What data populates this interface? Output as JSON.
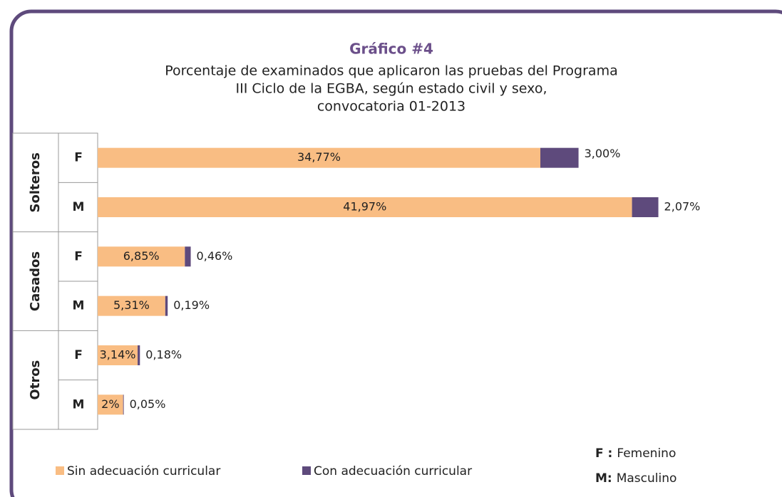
{
  "chart_data": {
    "type": "stacked-barh",
    "title": "Gráfico #4",
    "subtitle": [
      "Porcentaje de examinados que aplicaron las pruebas del Programa",
      "III Ciclo de la EGBA, según estado civil y sexo,",
      "convocatoria 01-2013"
    ],
    "groups": [
      {
        "name": "Solteros",
        "categories": [
          "F",
          "M"
        ]
      },
      {
        "name": "Casados",
        "categories": [
          "F",
          "M"
        ]
      },
      {
        "name": "Otros",
        "categories": [
          "F",
          "M"
        ]
      }
    ],
    "series": [
      {
        "name": "Sin adecuación curricular",
        "color": "#f9bd83",
        "values": [
          34.77,
          41.97,
          6.85,
          5.31,
          3.14,
          2
        ],
        "value_labels": [
          "34,77%",
          "41,97%",
          "6,85%",
          "5,31%",
          "3,14%",
          "2%"
        ]
      },
      {
        "name": "Con adecuación curricular",
        "color": "#5e4a7c",
        "values": [
          3.0,
          2.07,
          0.46,
          0.19,
          0.18,
          0.05
        ],
        "value_labels": [
          "3,00%",
          "2,07%",
          "0,46%",
          "0,19%",
          "0,18%",
          "0,05%"
        ]
      }
    ],
    "key": [
      {
        "code": "F :",
        "text": "Femenino"
      },
      {
        "code": "M:",
        "text": "Masculino"
      }
    ]
  }
}
